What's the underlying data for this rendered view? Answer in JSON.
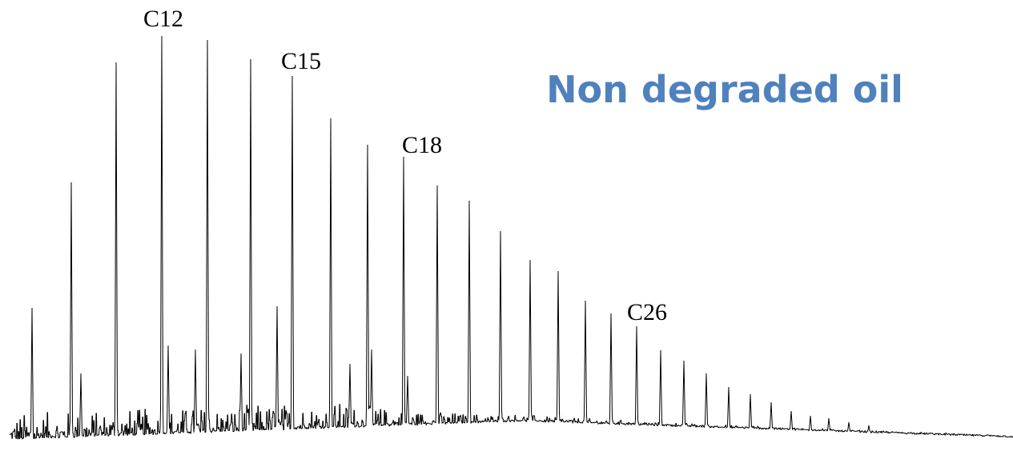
{
  "title": "Non degraded oil",
  "peak_labels": [
    "C12",
    "C15",
    "C18",
    "C26"
  ]
}
